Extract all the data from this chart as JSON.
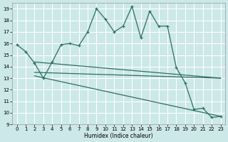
{
  "xlabel": "Humidex (Indice chaleur)",
  "bg_color": "#cce8e8",
  "grid_color": "#ffffff",
  "line_color": "#2d6e63",
  "xlim": [
    -0.5,
    23.5
  ],
  "ylim": [
    9,
    19.5
  ],
  "xticks": [
    0,
    1,
    2,
    3,
    4,
    5,
    6,
    7,
    8,
    9,
    10,
    11,
    12,
    13,
    14,
    15,
    16,
    17,
    18,
    19,
    20,
    21,
    22,
    23
  ],
  "yticks": [
    9,
    10,
    11,
    12,
    13,
    14,
    15,
    16,
    17,
    18,
    19
  ],
  "series1_x": [
    0,
    1,
    2,
    3,
    4,
    5,
    6,
    7,
    8,
    9,
    10,
    11,
    12,
    13,
    14,
    15,
    16,
    17,
    18,
    19,
    20,
    21,
    22,
    23
  ],
  "series1_y": [
    15.9,
    15.3,
    14.3,
    13.0,
    14.4,
    15.9,
    16.0,
    15.8,
    17.0,
    19.0,
    18.1,
    17.0,
    17.5,
    19.2,
    16.5,
    18.8,
    17.5,
    17.5,
    13.9,
    12.6,
    10.3,
    10.4,
    9.6,
    9.7
  ],
  "line2_x": [
    2,
    23
  ],
  "line2_y": [
    14.4,
    13.0
  ],
  "line3_x": [
    2,
    23
  ],
  "line3_y": [
    13.5,
    13.0
  ],
  "line4_x": [
    2,
    23
  ],
  "line4_y": [
    13.2,
    9.7
  ]
}
